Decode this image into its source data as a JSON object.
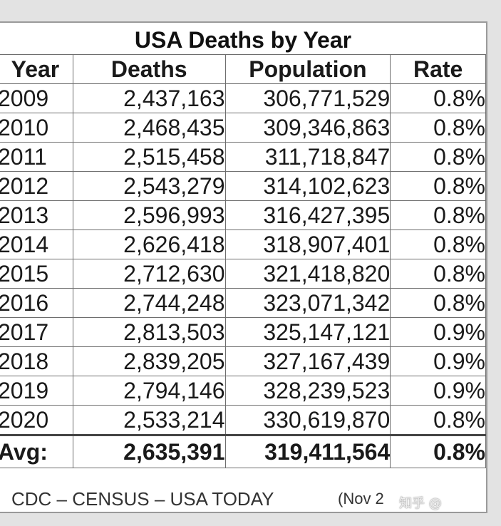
{
  "title": "USA Deaths by Year",
  "columns": {
    "year": "Year",
    "deaths": "Deaths",
    "population": "Population",
    "rate": "Rate"
  },
  "rows": [
    {
      "year": "2009",
      "deaths": "2,437,163",
      "population": "306,771,529",
      "rate": "0.8%"
    },
    {
      "year": "2010",
      "deaths": "2,468,435",
      "population": "309,346,863",
      "rate": "0.8%"
    },
    {
      "year": "2011",
      "deaths": "2,515,458",
      "population": "311,718,847",
      "rate": "0.8%"
    },
    {
      "year": "2012",
      "deaths": "2,543,279",
      "population": "314,102,623",
      "rate": "0.8%"
    },
    {
      "year": "2013",
      "deaths": "2,596,993",
      "population": "316,427,395",
      "rate": "0.8%"
    },
    {
      "year": "2014",
      "deaths": "2,626,418",
      "population": "318,907,401",
      "rate": "0.8%"
    },
    {
      "year": "2015",
      "deaths": "2,712,630",
      "population": "321,418,820",
      "rate": "0.8%"
    },
    {
      "year": "2016",
      "deaths": "2,744,248",
      "population": "323,071,342",
      "rate": "0.8%"
    },
    {
      "year": "2017",
      "deaths": "2,813,503",
      "population": "325,147,121",
      "rate": "0.9%"
    },
    {
      "year": "2018",
      "deaths": "2,839,205",
      "population": "327,167,439",
      "rate": "0.9%"
    },
    {
      "year": "2019",
      "deaths": "2,794,146",
      "population": "328,239,523",
      "rate": "0.9%"
    },
    {
      "year": "2020",
      "deaths": "2,533,214",
      "population": "330,619,870",
      "rate": "0.8%"
    }
  ],
  "average": {
    "label": "Avg:",
    "deaths": "2,635,391",
    "population": "319,411,564",
    "rate": "0.8%"
  },
  "footer": {
    "source": "CDC – CENSUS – USA TODAY",
    "date": "(Nov 2"
  },
  "watermark": "知乎 @"
}
